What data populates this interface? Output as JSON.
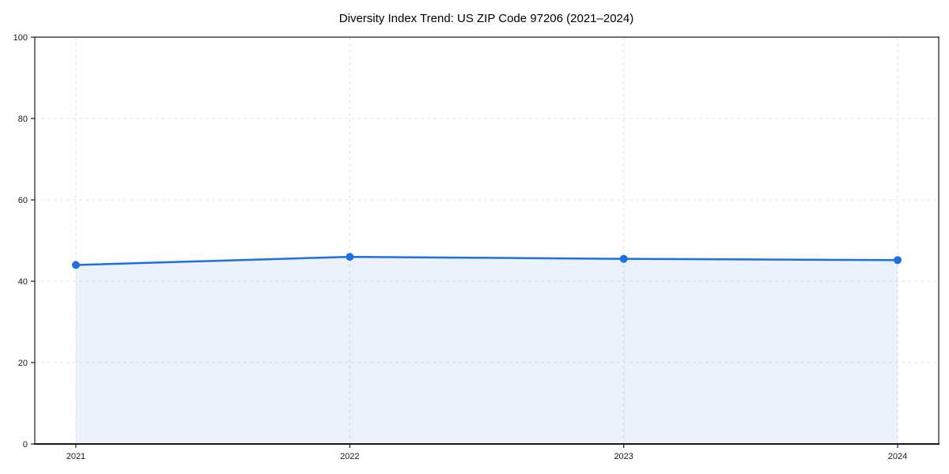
{
  "chart_data": {
    "type": "area",
    "title": "Diversity Index Trend: US ZIP Code 97206 (2021–2024)",
    "x": [
      2021,
      2022,
      2023,
      2024
    ],
    "categories": [
      "2021",
      "2022",
      "2023",
      "2024"
    ],
    "series": [
      {
        "name": "Diversity Index",
        "values": [
          44,
          46,
          45.5,
          45.2
        ]
      }
    ],
    "values": [
      44,
      46,
      45.5,
      45.2
    ],
    "xlabel": "",
    "ylabel": "",
    "ylim": [
      0,
      100
    ],
    "yticks": [
      0,
      20,
      40,
      60,
      80,
      100
    ],
    "grid": true,
    "grid_style": "dashed",
    "legend_position": "none",
    "colors": {
      "line": "#1f6fe0",
      "marker": "#1f6fe0",
      "fill": "#1f6fe0",
      "fill_opacity": 0.09,
      "gridline": "#e1e1e1",
      "spine": "#1a1a1a",
      "tick_label": "#1a1a1a",
      "background": "#ffffff"
    }
  }
}
